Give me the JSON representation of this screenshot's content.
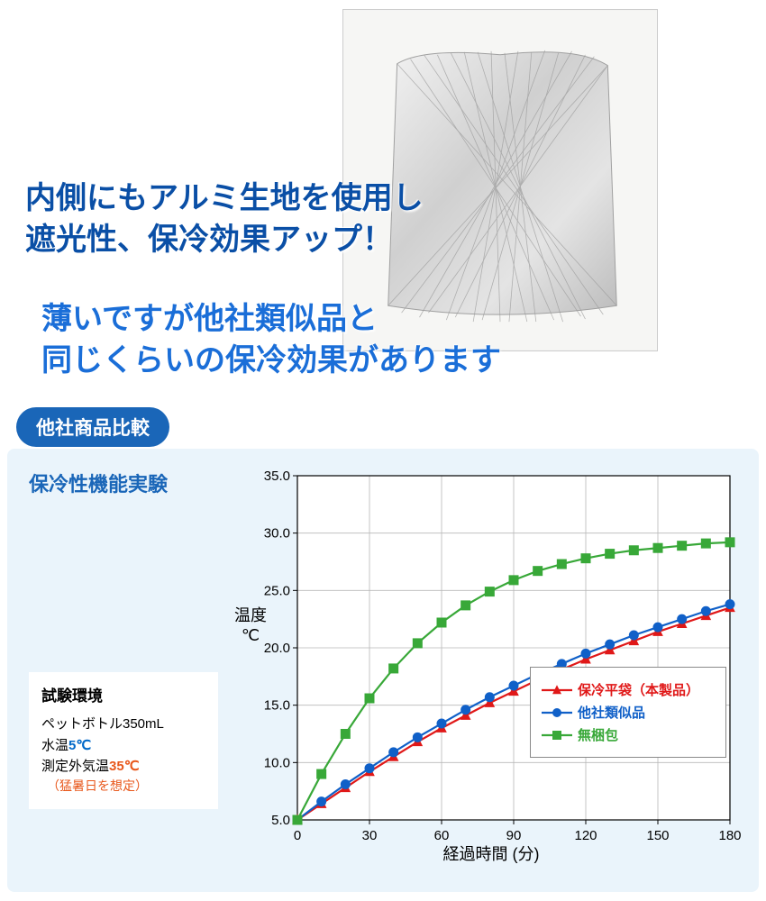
{
  "headline1": "内側にもアルミ生地を使用し\n遮光性、保冷効果アップ！",
  "headline2": "薄いですが他社類似品と\n同じくらいの保冷効果があります",
  "headline1_color": "#0a4fa6",
  "headline2_color": "#1a6ed8",
  "section_pill": "他社商品比較",
  "section_pill_bg": "#1a66b8",
  "panel_bg": "#eaf4fb",
  "subheading": "保冷性機能実験",
  "subheading_color": "#1a66b8",
  "env": {
    "title": "試験環境",
    "line1a": "ペットボトル350mL",
    "line2_label": "水温",
    "line2_val": "5℃",
    "line3_label": "測定外気温",
    "line3_val": "35℃",
    "line3_note": "（猛暑日を想定）"
  },
  "chart": {
    "type": "line",
    "xlabel": "経過時間 (分)",
    "ylabel_line1": "温度",
    "ylabel_line2": "℃",
    "xlim": [
      0,
      180
    ],
    "ylim": [
      5,
      35
    ],
    "xtick_step": 30,
    "ytick_step": 5,
    "xticks": [
      0,
      30,
      60,
      90,
      120,
      150,
      180
    ],
    "yticks": [
      5.0,
      10.0,
      15.0,
      20.0,
      25.0,
      30.0,
      35.0
    ],
    "grid_color": "#b8b8b8",
    "axis_color": "#000000",
    "background_color": "#ffffff",
    "tick_fontsize": 15,
    "label_fontsize": 18,
    "marker_size": 5,
    "line_width": 2.2,
    "x_values": [
      0,
      10,
      20,
      30,
      40,
      50,
      60,
      70,
      80,
      90,
      100,
      110,
      120,
      130,
      140,
      150,
      160,
      170,
      180
    ],
    "series": [
      {
        "name": "保冷平袋（本製品）",
        "color": "#e01818",
        "marker": "triangle",
        "y": [
          5.0,
          6.4,
          7.8,
          9.2,
          10.5,
          11.8,
          13.0,
          14.1,
          15.2,
          16.2,
          17.2,
          18.1,
          19.0,
          19.8,
          20.6,
          21.4,
          22.1,
          22.8,
          23.5
        ]
      },
      {
        "name": "他社類似品",
        "color": "#1060c8",
        "marker": "circle",
        "y": [
          5.0,
          6.6,
          8.1,
          9.5,
          10.9,
          12.2,
          13.4,
          14.6,
          15.7,
          16.7,
          17.7,
          18.6,
          19.5,
          20.3,
          21.1,
          21.8,
          22.5,
          23.2,
          23.8
        ]
      },
      {
        "name": "無梱包",
        "color": "#38a838",
        "marker": "square",
        "y": [
          5.0,
          9.0,
          12.5,
          15.6,
          18.2,
          20.4,
          22.2,
          23.7,
          24.9,
          25.9,
          26.7,
          27.3,
          27.8,
          28.2,
          28.5,
          28.7,
          28.9,
          29.1,
          29.2
        ]
      }
    ]
  }
}
